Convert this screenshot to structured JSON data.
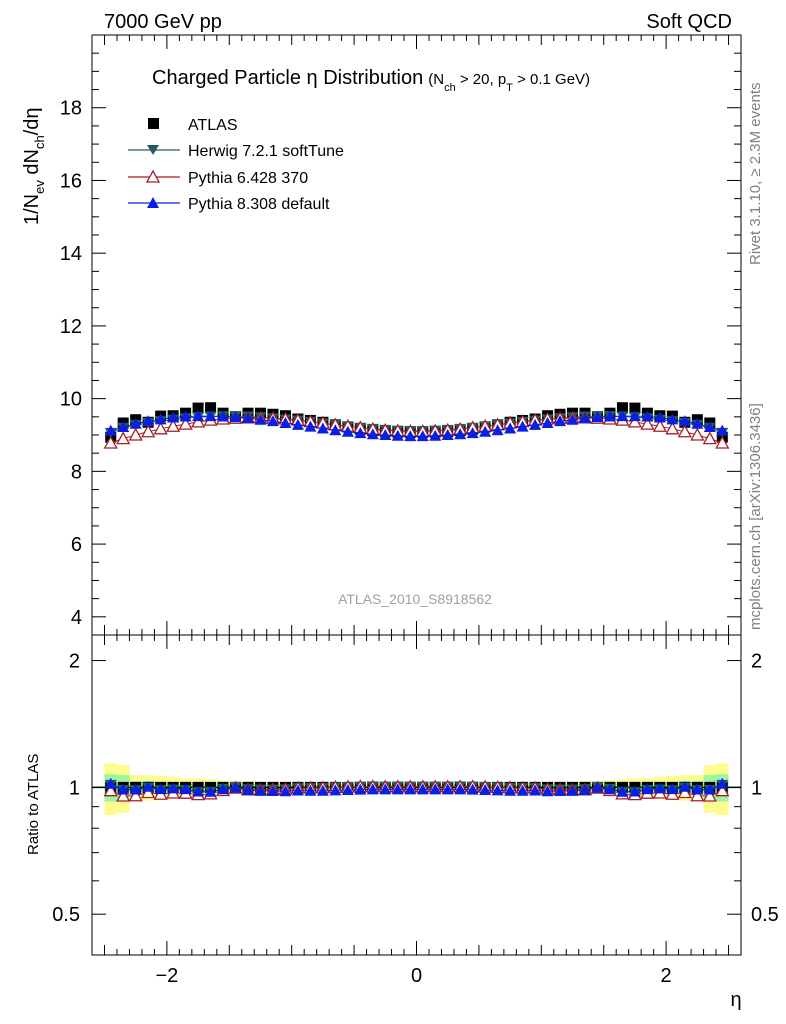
{
  "header": {
    "left_label": "7000 GeV pp",
    "right_label": "Soft QCD"
  },
  "side_labels": {
    "rivet": "Rivet 3.1.10, ≥ 2.3M events",
    "mcplots": "mcplots.cern.ch [arXiv:1306.3436]"
  },
  "chart_data": {
    "type": "scatter",
    "title": {
      "main": "Charged Particle η Distribution",
      "nch_base": "(N",
      "nch_sub": "ch",
      "nch_rest": " > 20, p",
      "pt_sub": "T",
      "pt_rest": " > 0.1 GeV)"
    },
    "analysis_id": "ATLAS_2010_S8918562",
    "x_axis": {
      "label": "η",
      "range": [
        -2.6,
        2.6
      ],
      "ticks": [
        -2,
        0,
        2
      ],
      "tick_labels": [
        "−2",
        "0",
        "2"
      ]
    },
    "main_panel": {
      "ylabel": {
        "p1": "1/N",
        "s1": "ev",
        "p2": " dN",
        "s2": "ch",
        "p3": "/dη"
      },
      "y_range": [
        3.5,
        20
      ],
      "y_ticks": [
        4,
        6,
        8,
        10,
        12,
        14,
        16,
        18
      ],
      "y_tick_labels": [
        "4",
        "6",
        "8",
        "10",
        "12",
        "14",
        "16",
        "18"
      ]
    },
    "ratio_panel": {
      "ylabel": "Ratio to ATLAS",
      "y_range": [
        0.4,
        2.3
      ],
      "log_scale": true,
      "y_ticks": [
        0.5,
        1,
        2
      ],
      "y_tick_labels": [
        "0.5",
        "1",
        "2"
      ],
      "band_inner": [
        0.075,
        0.07,
        0.035,
        0.035,
        0.03,
        0.03,
        0.025,
        0.025,
        0.025,
        0.02,
        0.02,
        0.02,
        0.015,
        0.015,
        0.015,
        0.015,
        0.015,
        0.015,
        0.015,
        0.015,
        0.015,
        0.015,
        0.015,
        0.015,
        0.015,
        0.015,
        0.015,
        0.015,
        0.015,
        0.015,
        0.015,
        0.015,
        0.015,
        0.015,
        0.015,
        0.015,
        0.015,
        0.015,
        0.02,
        0.02,
        0.02,
        0.025,
        0.025,
        0.025,
        0.03,
        0.03,
        0.035,
        0.035,
        0.07,
        0.075
      ],
      "band_outer": [
        0.14,
        0.13,
        0.07,
        0.07,
        0.065,
        0.06,
        0.05,
        0.05,
        0.045,
        0.04,
        0.035,
        0.035,
        0.03,
        0.03,
        0.03,
        0.025,
        0.025,
        0.025,
        0.025,
        0.025,
        0.025,
        0.025,
        0.025,
        0.025,
        0.025,
        0.025,
        0.025,
        0.025,
        0.025,
        0.025,
        0.025,
        0.025,
        0.025,
        0.025,
        0.025,
        0.03,
        0.03,
        0.03,
        0.035,
        0.035,
        0.04,
        0.045,
        0.05,
        0.05,
        0.06,
        0.065,
        0.07,
        0.07,
        0.13,
        0.14
      ]
    },
    "x": [
      -2.45,
      -2.35,
      -2.25,
      -2.15,
      -2.05,
      -1.95,
      -1.85,
      -1.75,
      -1.65,
      -1.55,
      -1.45,
      -1.35,
      -1.25,
      -1.15,
      -1.05,
      -0.95,
      -0.85,
      -0.75,
      -0.65,
      -0.55,
      -0.45,
      -0.35,
      -0.25,
      -0.15,
      -0.05,
      0.05,
      0.15,
      0.25,
      0.35,
      0.45,
      0.55,
      0.65,
      0.75,
      0.85,
      0.95,
      1.05,
      1.15,
      1.25,
      1.35,
      1.45,
      1.55,
      1.65,
      1.75,
      1.85,
      1.95,
      2.05,
      2.15,
      2.25,
      2.35,
      2.45
    ],
    "series": [
      {
        "name": "ATLAS",
        "marker": "square",
        "color": "#000000",
        "values": [
          8.94,
          9.33,
          9.42,
          9.35,
          9.52,
          9.53,
          9.6,
          9.74,
          9.75,
          9.6,
          9.5,
          9.6,
          9.6,
          9.57,
          9.53,
          9.44,
          9.4,
          9.35,
          9.28,
          9.22,
          9.16,
          9.12,
          9.1,
          9.08,
          9.07,
          9.07,
          9.08,
          9.1,
          9.12,
          9.16,
          9.22,
          9.28,
          9.35,
          9.4,
          9.44,
          9.53,
          9.57,
          9.6,
          9.6,
          9.5,
          9.6,
          9.75,
          9.74,
          9.6,
          9.53,
          9.52,
          9.35,
          9.42,
          9.33,
          8.94
        ]
      },
      {
        "name": "Herwig 7.2.1 softTune",
        "marker": "triangle-down",
        "color": "#215d60",
        "values": [
          9.06,
          9.2,
          9.28,
          9.33,
          9.38,
          9.42,
          9.46,
          9.49,
          9.51,
          9.52,
          9.52,
          9.51,
          9.49,
          9.46,
          9.43,
          9.4,
          9.36,
          9.32,
          9.28,
          9.24,
          9.2,
          9.17,
          9.14,
          9.12,
          9.11,
          9.11,
          9.12,
          9.14,
          9.17,
          9.2,
          9.24,
          9.28,
          9.32,
          9.36,
          9.4,
          9.43,
          9.46,
          9.49,
          9.51,
          9.52,
          9.52,
          9.51,
          9.49,
          9.46,
          9.42,
          9.38,
          9.33,
          9.28,
          9.2,
          9.06
        ]
      },
      {
        "name": "Pythia 6.428 370",
        "marker": "triangle-up-open",
        "color": "#a41f25",
        "values": [
          8.78,
          8.9,
          9.0,
          9.09,
          9.17,
          9.24,
          9.3,
          9.36,
          9.41,
          9.44,
          9.46,
          9.47,
          9.47,
          9.46,
          9.44,
          9.41,
          9.37,
          9.33,
          9.28,
          9.24,
          9.2,
          9.16,
          9.13,
          9.11,
          9.1,
          9.1,
          9.11,
          9.13,
          9.16,
          9.2,
          9.24,
          9.28,
          9.33,
          9.37,
          9.41,
          9.44,
          9.46,
          9.47,
          9.47,
          9.46,
          9.44,
          9.41,
          9.36,
          9.3,
          9.24,
          9.17,
          9.09,
          9.0,
          8.9,
          8.78
        ]
      },
      {
        "name": "Pythia 8.308 default",
        "marker": "triangle-up",
        "color": "#0a1fe3",
        "values": [
          9.12,
          9.22,
          9.31,
          9.38,
          9.43,
          9.48,
          9.51,
          9.52,
          9.52,
          9.51,
          9.49,
          9.46,
          9.42,
          9.38,
          9.33,
          9.28,
          9.23,
          9.18,
          9.13,
          9.09,
          9.05,
          9.02,
          9.0,
          8.98,
          8.97,
          8.97,
          8.98,
          9.0,
          9.02,
          9.05,
          9.09,
          9.13,
          9.18,
          9.23,
          9.28,
          9.33,
          9.38,
          9.42,
          9.46,
          9.49,
          9.51,
          9.52,
          9.52,
          9.51,
          9.48,
          9.43,
          9.38,
          9.31,
          9.22,
          9.12
        ]
      }
    ]
  }
}
